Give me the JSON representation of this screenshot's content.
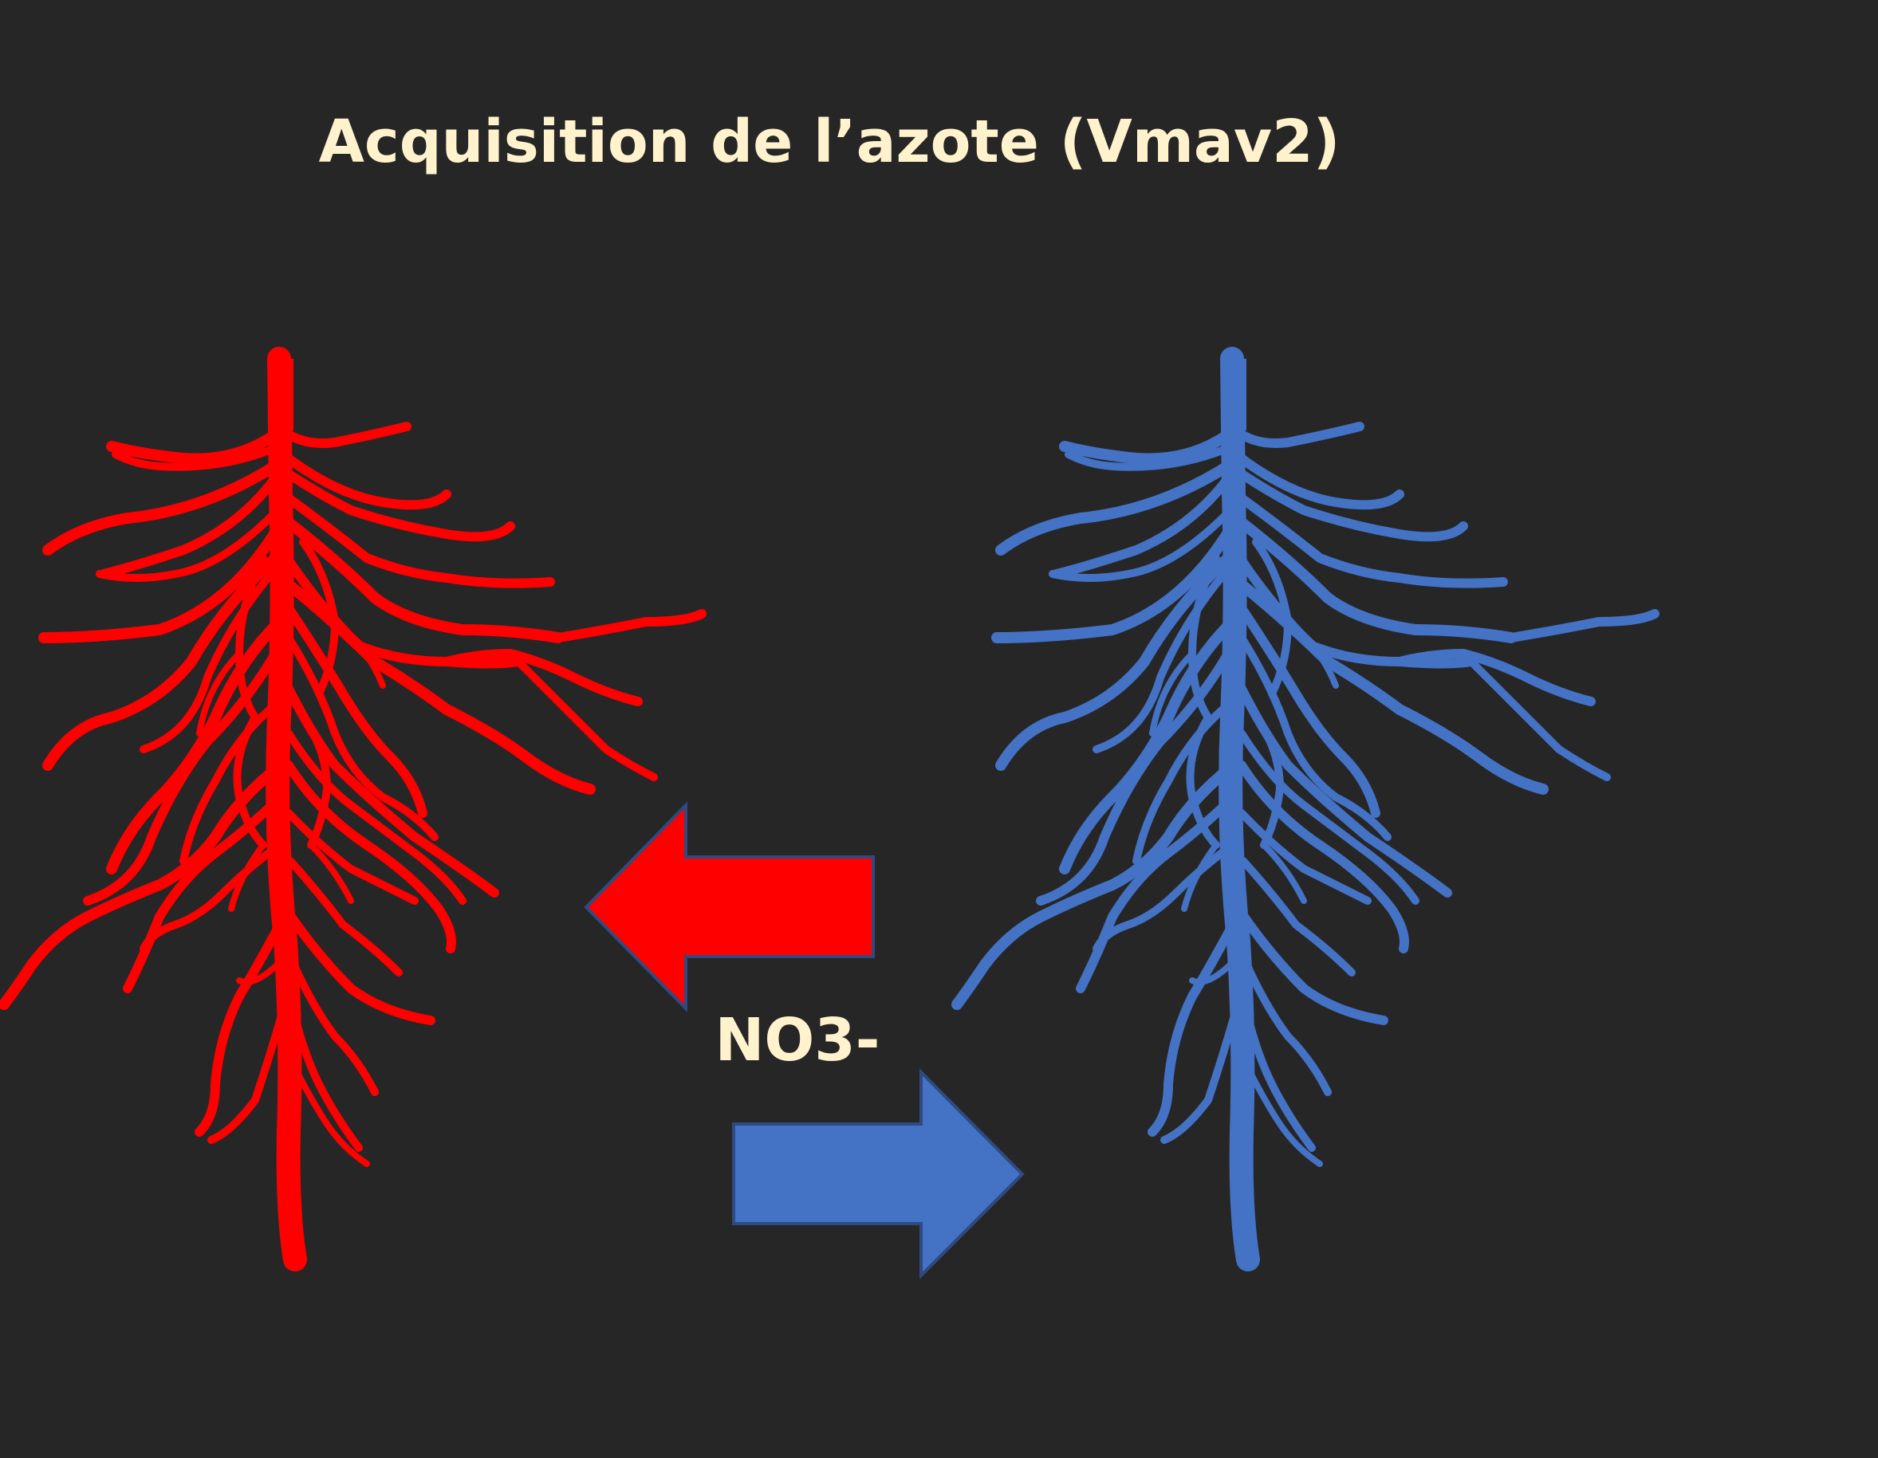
{
  "slide": {
    "title": "Acquisition de l’azote (Vmav2)",
    "label": "NO3-"
  },
  "colors": {
    "background": "#262626",
    "text": "#fff2cc",
    "root_left": "#ff0000",
    "root_right": "#4472c4",
    "arrow_outline": "#2f4a80"
  },
  "icons": {
    "root_left": "root-system-icon",
    "root_right": "root-system-icon",
    "arrow_left": "arrow-left-icon",
    "arrow_right": "arrow-right-icon"
  }
}
